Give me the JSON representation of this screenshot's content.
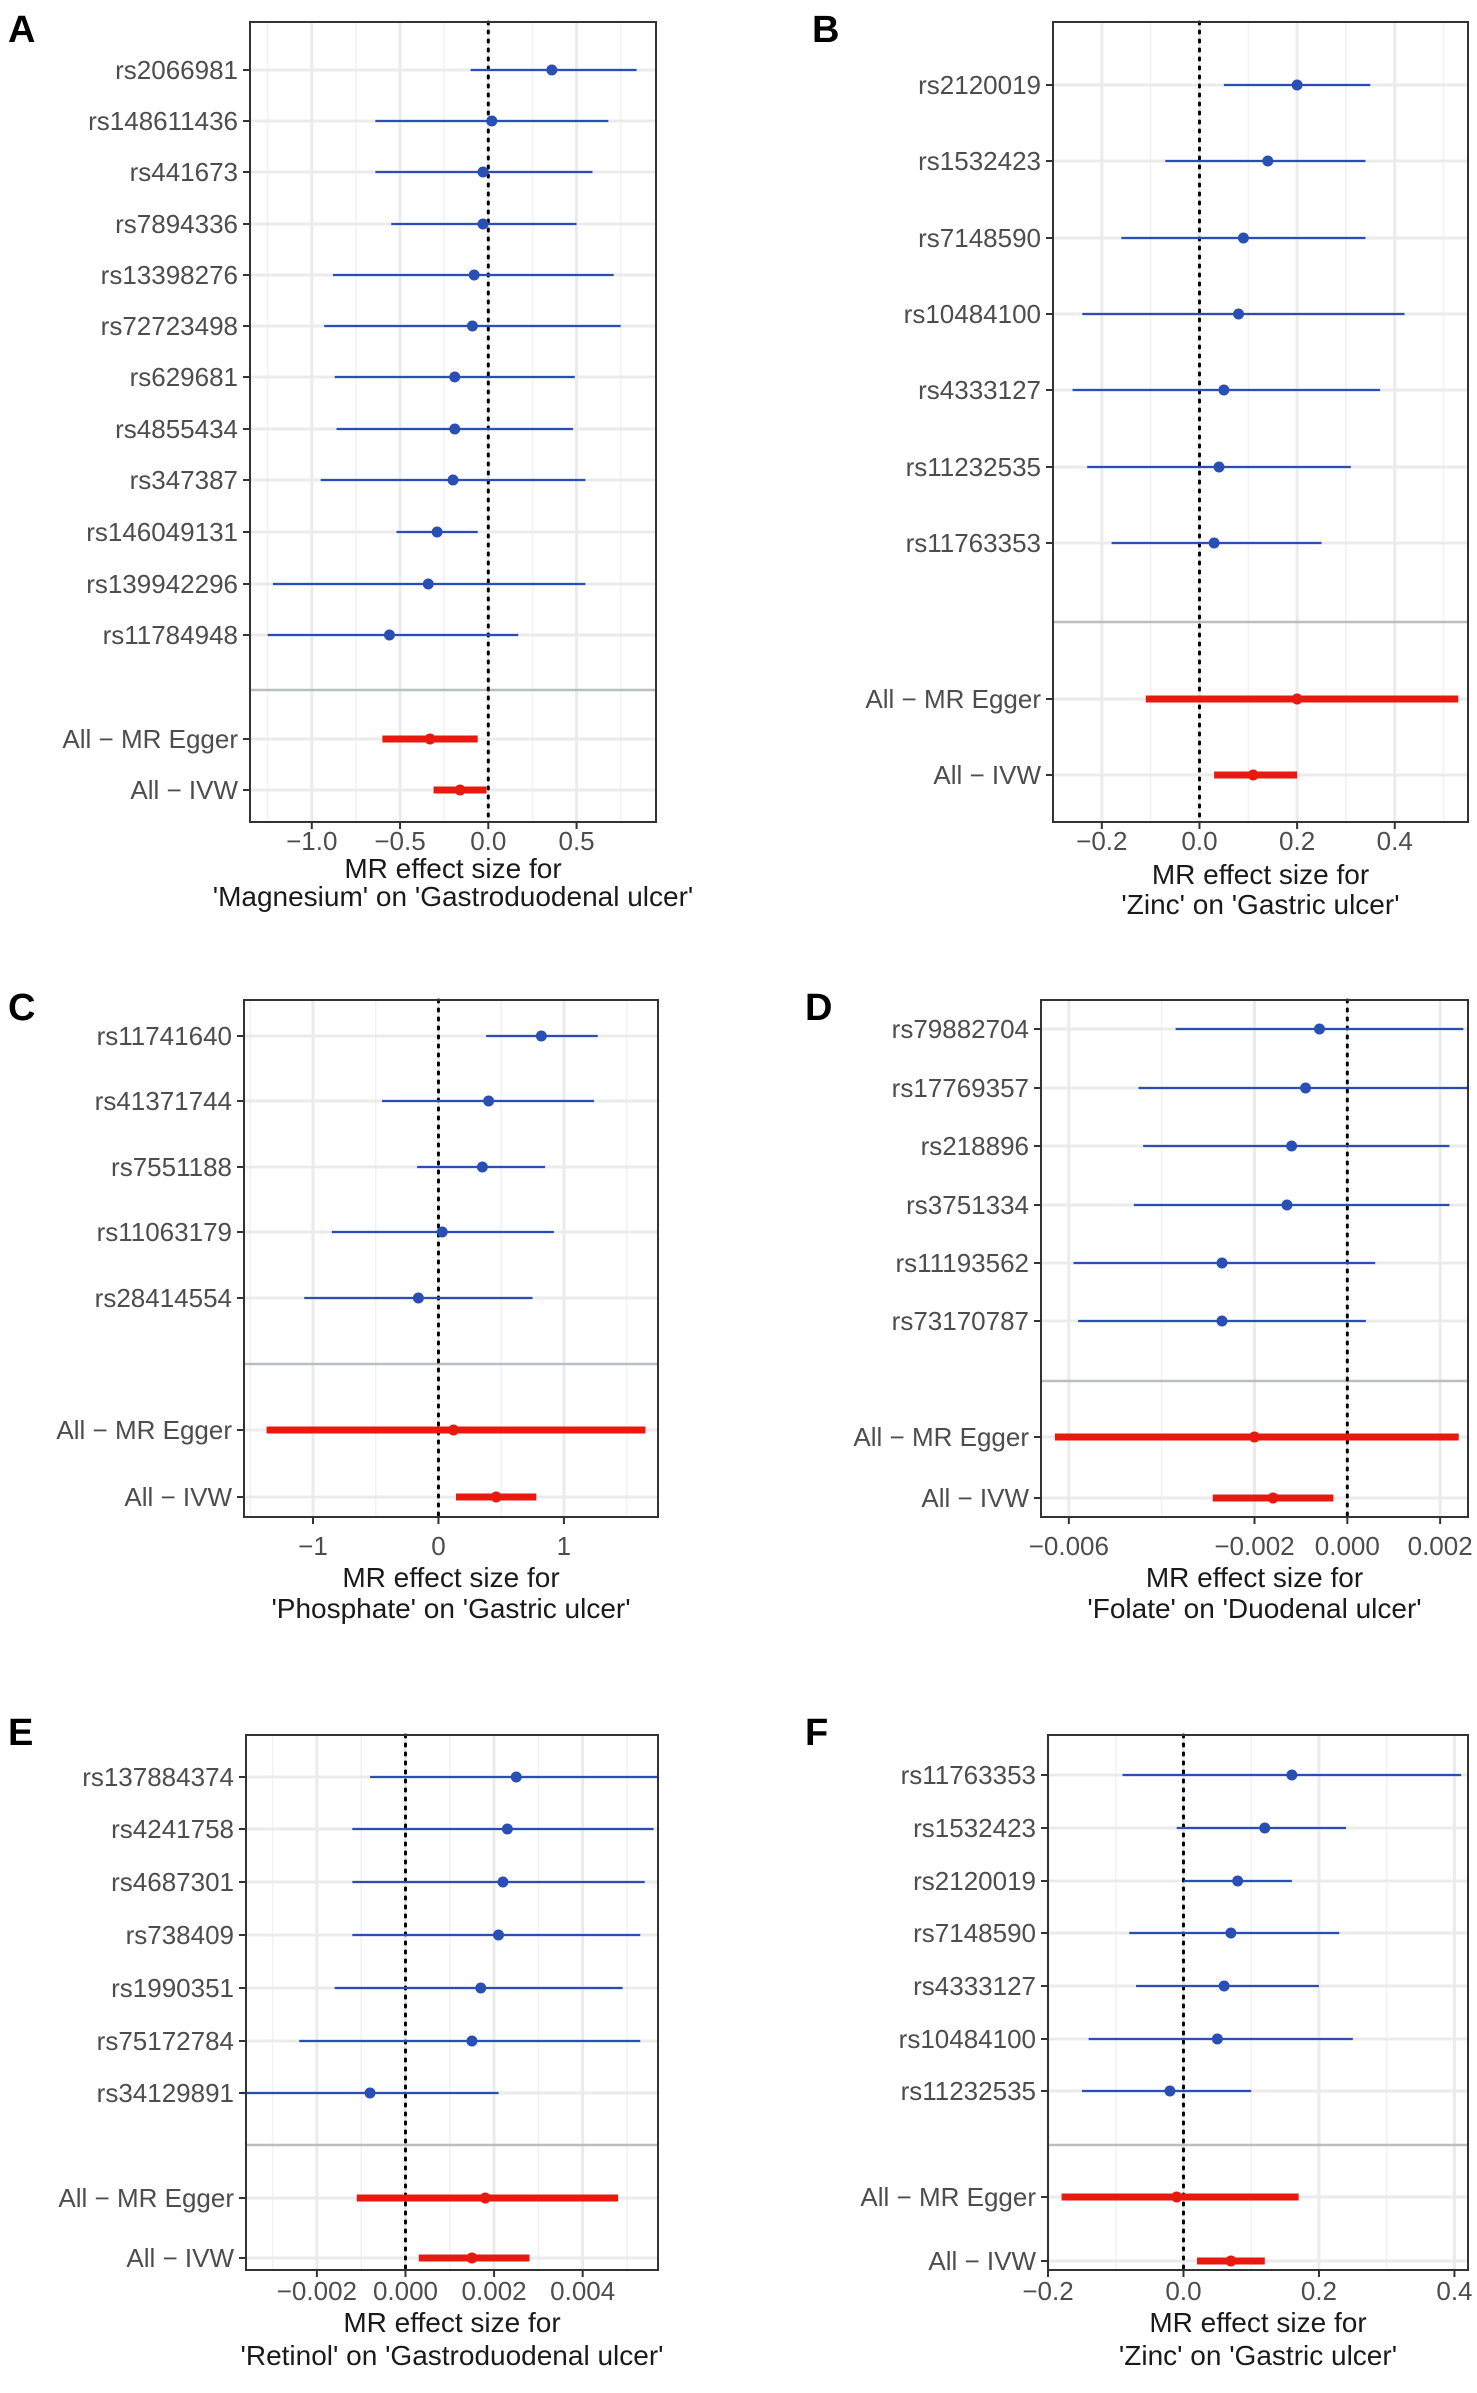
{
  "chart_data": [
    {
      "id": "A",
      "type": "forest",
      "panel_label": "A",
      "xlabel_line1": "MR effect size for",
      "xlabel_line2": "'Magnesium' on 'Gastroduodenal ulcer'",
      "xlim": [
        -1.35,
        0.95
      ],
      "ticks": [
        -1.0,
        -0.5,
        0.0,
        0.5
      ],
      "tick_labels": [
        "−1.0",
        "−0.5",
        "0.0",
        "0.5"
      ],
      "snps": [
        {
          "label": "rs2066981",
          "est": 0.36,
          "lo": -0.1,
          "hi": 0.84
        },
        {
          "label": "rs148611436",
          "est": 0.02,
          "lo": -0.64,
          "hi": 0.68
        },
        {
          "label": "rs441673",
          "est": -0.03,
          "lo": -0.64,
          "hi": 0.59
        },
        {
          "label": "rs7894336",
          "est": -0.03,
          "lo": -0.55,
          "hi": 0.5
        },
        {
          "label": "rs13398276",
          "est": -0.08,
          "lo": -0.88,
          "hi": 0.71
        },
        {
          "label": "rs72723498",
          "est": -0.09,
          "lo": -0.93,
          "hi": 0.75
        },
        {
          "label": "rs629681",
          "est": -0.19,
          "lo": -0.87,
          "hi": 0.49
        },
        {
          "label": "rs4855434",
          "est": -0.19,
          "lo": -0.86,
          "hi": 0.48
        },
        {
          "label": "rs347387",
          "est": -0.2,
          "lo": -0.95,
          "hi": 0.55
        },
        {
          "label": "rs146049131",
          "est": -0.29,
          "lo": -0.52,
          "hi": -0.06
        },
        {
          "label": "rs139942296",
          "est": -0.34,
          "lo": -1.22,
          "hi": 0.55
        },
        {
          "label": "rs11784948",
          "est": -0.56,
          "lo": -1.25,
          "hi": 0.17
        }
      ],
      "summaries": [
        {
          "label": "All − MR Egger",
          "est": -0.33,
          "lo": -0.6,
          "hi": -0.06
        },
        {
          "label": "All − IVW",
          "est": -0.16,
          "lo": -0.31,
          "hi": -0.01
        }
      ]
    },
    {
      "id": "B",
      "type": "forest",
      "panel_label": "B",
      "xlabel_line1": "MR effect size for",
      "xlabel_line2": "'Zinc' on 'Gastric ulcer'",
      "xlim": [
        -0.3,
        0.55
      ],
      "ticks": [
        -0.2,
        0.0,
        0.2,
        0.4
      ],
      "tick_labels": [
        "−0.2",
        "0.0",
        "0.2",
        "0.4"
      ],
      "snps": [
        {
          "label": "rs2120019",
          "est": 0.2,
          "lo": 0.05,
          "hi": 0.35
        },
        {
          "label": "rs1532423",
          "est": 0.14,
          "lo": -0.07,
          "hi": 0.34
        },
        {
          "label": "rs7148590",
          "est": 0.09,
          "lo": -0.16,
          "hi": 0.34
        },
        {
          "label": "rs10484100",
          "est": 0.08,
          "lo": -0.24,
          "hi": 0.42
        },
        {
          "label": "rs4333127",
          "est": 0.05,
          "lo": -0.26,
          "hi": 0.37
        },
        {
          "label": "rs11232535",
          "est": 0.04,
          "lo": -0.23,
          "hi": 0.31
        },
        {
          "label": "rs11763353",
          "est": 0.03,
          "lo": -0.18,
          "hi": 0.25
        }
      ],
      "summaries": [
        {
          "label": "All − MR Egger",
          "est": 0.2,
          "lo": -0.11,
          "hi": 0.53
        },
        {
          "label": "All − IVW",
          "est": 0.11,
          "lo": 0.03,
          "hi": 0.2
        }
      ]
    },
    {
      "id": "C",
      "type": "forest",
      "panel_label": "C",
      "xlabel_line1": "MR effect size for",
      "xlabel_line2": "'Phosphate' on 'Gastric ulcer'",
      "xlim": [
        -1.55,
        1.75
      ],
      "ticks": [
        -1,
        0,
        1
      ],
      "tick_labels": [
        "−1",
        "0",
        "1"
      ],
      "snps": [
        {
          "label": "rs11741640",
          "est": 0.82,
          "lo": 0.38,
          "hi": 1.27
        },
        {
          "label": "rs41371744",
          "est": 0.4,
          "lo": -0.45,
          "hi": 1.24
        },
        {
          "label": "rs7551188",
          "est": 0.35,
          "lo": -0.17,
          "hi": 0.85
        },
        {
          "label": "rs11063179",
          "est": 0.03,
          "lo": -0.85,
          "hi": 0.92
        },
        {
          "label": "rs28414554",
          "est": -0.16,
          "lo": -1.07,
          "hi": 0.75
        }
      ],
      "summaries": [
        {
          "label": "All − MR Egger",
          "est": 0.12,
          "lo": -1.37,
          "hi": 1.65
        },
        {
          "label": "All − IVW",
          "est": 0.46,
          "lo": 0.14,
          "hi": 0.78
        }
      ]
    },
    {
      "id": "D",
      "type": "forest",
      "panel_label": "D",
      "xlabel_line1": "MR effect size for",
      "xlabel_line2": "'Folate' on 'Duodenal ulcer'",
      "xlim": [
        -0.0066,
        0.0026
      ],
      "ticks": [
        -0.006,
        -0.002,
        0.0,
        0.002
      ],
      "tick_labels": [
        "−0.006",
        "−0.002",
        "0.000",
        "0.002"
      ],
      "snps": [
        {
          "label": "rs79882704",
          "est": -0.0006,
          "lo": -0.0037,
          "hi": 0.0025
        },
        {
          "label": "rs17769357",
          "est": -0.0009,
          "lo": -0.0045,
          "hi": 0.0026
        },
        {
          "label": "rs218896",
          "est": -0.0012,
          "lo": -0.0044,
          "hi": 0.0022
        },
        {
          "label": "rs3751334",
          "est": -0.0013,
          "lo": -0.0046,
          "hi": 0.0022
        },
        {
          "label": "rs11193562",
          "est": -0.0027,
          "lo": -0.0059,
          "hi": 0.0006
        },
        {
          "label": "rs73170787",
          "est": -0.0027,
          "lo": -0.0058,
          "hi": 0.0004
        }
      ],
      "summaries": [
        {
          "label": "All − MR Egger",
          "est": -0.002,
          "lo": -0.0063,
          "hi": 0.0024
        },
        {
          "label": "All − IVW",
          "est": -0.0016,
          "lo": -0.0029,
          "hi": -0.0003
        }
      ]
    },
    {
      "id": "E",
      "type": "forest",
      "panel_label": "E",
      "xlabel_line1": "MR effect size for",
      "xlabel_line2": "'Retinol' on 'Gastroduodenal ulcer'",
      "xlim": [
        -0.0036,
        0.0057
      ],
      "ticks": [
        -0.002,
        0.0,
        0.002,
        0.004
      ],
      "tick_labels": [
        "−0.002",
        "0.000",
        "0.002",
        "0.004"
      ],
      "snps": [
        {
          "label": "rs137884374",
          "est": 0.0025,
          "lo": -0.0008,
          "hi": 0.0057
        },
        {
          "label": "rs4241758",
          "est": 0.0023,
          "lo": -0.0012,
          "hi": 0.0056
        },
        {
          "label": "rs4687301",
          "est": 0.0022,
          "lo": -0.0012,
          "hi": 0.0054
        },
        {
          "label": "rs738409",
          "est": 0.0021,
          "lo": -0.0012,
          "hi": 0.0053
        },
        {
          "label": "rs1990351",
          "est": 0.0017,
          "lo": -0.0016,
          "hi": 0.0049
        },
        {
          "label": "rs75172784",
          "est": 0.0015,
          "lo": -0.0024,
          "hi": 0.0053
        },
        {
          "label": "rs34129891",
          "est": -0.0008,
          "lo": -0.0037,
          "hi": 0.0021
        }
      ],
      "summaries": [
        {
          "label": "All − MR Egger",
          "est": 0.0018,
          "lo": -0.0011,
          "hi": 0.0048
        },
        {
          "label": "All − IVW",
          "est": 0.0015,
          "lo": 0.0003,
          "hi": 0.0028
        }
      ]
    },
    {
      "id": "F",
      "type": "forest",
      "panel_label": "F",
      "xlabel_line1": "MR effect size for",
      "xlabel_line2": "'Zinc' on 'Gastric ulcer'",
      "xlim": [
        -0.2,
        0.42
      ],
      "ticks": [
        -0.2,
        0.0,
        0.2,
        0.4
      ],
      "tick_labels": [
        "−0.2",
        "0.0",
        "0.2",
        "0.4"
      ],
      "snps": [
        {
          "label": "rs11763353",
          "est": 0.16,
          "lo": -0.09,
          "hi": 0.41
        },
        {
          "label": "rs1532423",
          "est": 0.12,
          "lo": -0.01,
          "hi": 0.24
        },
        {
          "label": "rs2120019",
          "est": 0.08,
          "lo": 0.0,
          "hi": 0.16
        },
        {
          "label": "rs7148590",
          "est": 0.07,
          "lo": -0.08,
          "hi": 0.23
        },
        {
          "label": "rs4333127",
          "est": 0.06,
          "lo": -0.07,
          "hi": 0.2
        },
        {
          "label": "rs10484100",
          "est": 0.05,
          "lo": -0.14,
          "hi": 0.25
        },
        {
          "label": "rs11232535",
          "est": -0.02,
          "lo": -0.15,
          "hi": 0.1
        }
      ],
      "summaries": [
        {
          "label": "All − MR Egger",
          "est": -0.01,
          "lo": -0.18,
          "hi": 0.17
        },
        {
          "label": "All − IVW",
          "est": 0.07,
          "lo": 0.02,
          "hi": 0.12
        }
      ]
    }
  ],
  "colors": {
    "snp": "#2a4fb4",
    "summary": "#e8190f",
    "grid": "#ebebeb",
    "separator": "#b8bec2",
    "axis_text": "#4d4d4d",
    "text": "#1a1a1a",
    "border": "#333333"
  }
}
